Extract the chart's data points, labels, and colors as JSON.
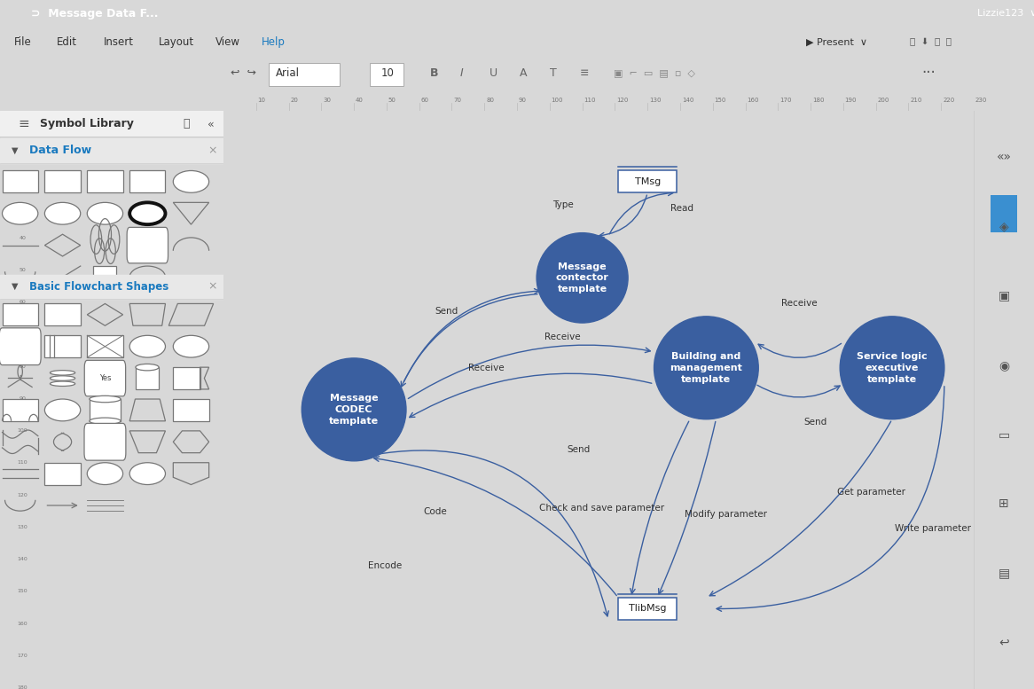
{
  "title": "Message Data F...",
  "topbar_color": "#1e8dea",
  "menu_bg": "#ffffff",
  "toolbar_bg": "#f5f5f5",
  "sidebar_bg": "#f0f0f0",
  "canvas_bg": "#ffffff",
  "arrow_color": "#3a5fa0",
  "node_color": "#3a5fa0",
  "node_text_color": "#ffffff",
  "nodes": {
    "message_connector": {
      "label": "Message\ncontector\ntemplate"
    },
    "message_codec": {
      "label": "Message\nCODEC\ntemplate"
    },
    "building_mgmt": {
      "label": "Building and\nmanagement\ntemplate"
    },
    "service_logic": {
      "label": "Service logic\nexecutive\ntemplate"
    }
  },
  "topbar_items": [
    "File",
    "Edit",
    "Insert",
    "Layout",
    "View",
    "Help"
  ],
  "df_section": "Data Flow",
  "bfs_section": "Basic Flowchart Shapes"
}
